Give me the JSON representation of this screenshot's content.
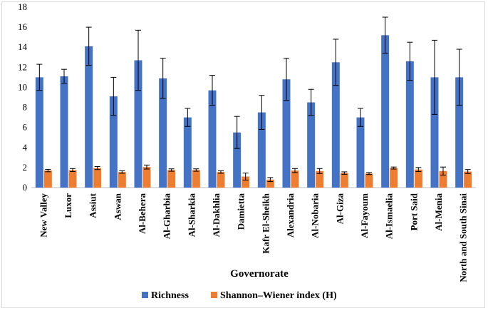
{
  "chart_data": {
    "type": "bar",
    "xlabel": "Governorate",
    "ylabel": "",
    "ylim": [
      0,
      18
    ],
    "yticks": [
      0,
      2,
      4,
      6,
      8,
      10,
      12,
      14,
      16,
      18
    ],
    "grid": false,
    "legend_position": "bottom",
    "categories": [
      "New Valley",
      "Luxor",
      "Assiut",
      "Aswan",
      "Al-Behera",
      "Al-Gharbia",
      "Al-Sharkia",
      "Al-Dakhlia",
      "Damietta",
      "Kafr El-Sheikh",
      "Alexandria",
      "Al-Nobaria",
      "Al-Giza",
      "Al-Fayoum",
      "Al-Ismaelia",
      "Port Said",
      "Al-Menia",
      "North and South Sinai"
    ],
    "series": [
      {
        "name": "Richness",
        "color": "#4472c4",
        "values": [
          11.0,
          11.1,
          14.1,
          9.1,
          12.7,
          10.9,
          7.0,
          9.7,
          5.5,
          7.5,
          10.8,
          8.5,
          12.5,
          7.0,
          15.2,
          12.6,
          11.0,
          11.0
        ],
        "errors": [
          1.3,
          0.7,
          1.9,
          1.9,
          3.0,
          2.0,
          0.9,
          1.5,
          1.6,
          1.7,
          2.1,
          1.3,
          2.3,
          0.9,
          1.8,
          1.9,
          3.7,
          2.8
        ]
      },
      {
        "name": "Shannon–Wiener index (H)",
        "color": "#ed7d31",
        "values": [
          1.7,
          1.75,
          1.95,
          1.55,
          2.05,
          1.75,
          1.75,
          1.55,
          1.1,
          0.8,
          1.7,
          1.65,
          1.45,
          1.4,
          1.95,
          1.8,
          1.65,
          1.6
        ],
        "errors": [
          0.12,
          0.15,
          0.15,
          0.12,
          0.2,
          0.12,
          0.12,
          0.12,
          0.35,
          0.2,
          0.2,
          0.25,
          0.12,
          0.1,
          0.1,
          0.2,
          0.4,
          0.2
        ]
      }
    ]
  }
}
